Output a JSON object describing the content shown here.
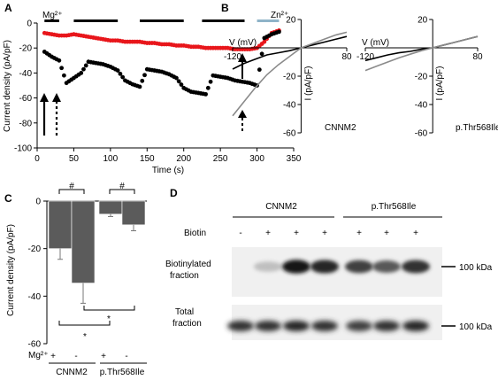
{
  "chart_data": [
    {
      "panel": "A",
      "type": "scatter",
      "xlabel": "Time (s)",
      "ylabel": "Current density (pA/pF)",
      "xlim": [
        0,
        350
      ],
      "ylim": [
        -100,
        0
      ],
      "xticks": [
        "0",
        "50",
        "100",
        "150",
        "200",
        "250",
        "300",
        "350"
      ],
      "yticks": [
        "0",
        "-20",
        "-40",
        "-60",
        "-80",
        "-100"
      ],
      "annotations": {
        "mg": "Mg²⁺",
        "zn": "Zn²⁺"
      },
      "mg_bars": [
        [
          10,
          30
        ],
        [
          50,
          110
        ],
        [
          140,
          200
        ],
        [
          225,
          283
        ]
      ],
      "zn_bar": [
        300,
        330
      ],
      "colors": {
        "red": "#e8161b",
        "black": "#000000",
        "zn_bar": "#8fb3c8"
      },
      "series": [
        {
          "color": "red",
          "x": [
            10,
            20,
            30,
            40,
            50,
            60,
            70,
            80,
            90,
            100,
            110,
            120,
            130,
            140,
            150,
            160,
            170,
            180,
            190,
            200,
            210,
            220,
            230,
            240,
            250,
            260,
            270,
            280,
            290,
            300,
            310,
            320,
            330
          ],
          "values": [
            -8,
            -9,
            -10,
            -10,
            -9,
            -10,
            -11,
            -12,
            -13,
            -14,
            -14,
            -15,
            -15,
            -15,
            -16,
            -16,
            -17,
            -17,
            -18,
            -18,
            -19,
            -19,
            -20,
            -20,
            -20,
            -20,
            -21,
            -21,
            -21,
            -20,
            -15,
            -8,
            -6
          ]
        },
        {
          "color": "black",
          "x": [
            10,
            20,
            30,
            40,
            50,
            60,
            70,
            80,
            90,
            100,
            110,
            120,
            130,
            140,
            150,
            160,
            170,
            180,
            190,
            200,
            210,
            220,
            230,
            240,
            250,
            260,
            270,
            280,
            290,
            300,
            310,
            320,
            330
          ],
          "values": [
            -23,
            -27,
            -30,
            -48,
            -44,
            -40,
            -31,
            -32,
            -33,
            -35,
            -38,
            -46,
            -49,
            -51,
            -37,
            -38,
            -39,
            -41,
            -44,
            -52,
            -55,
            -56,
            -57,
            -42,
            -43,
            -44,
            -46,
            -47,
            -48,
            -50,
            -12,
            -9,
            -7
          ]
        }
      ]
    },
    {
      "panel": "B",
      "type": "line",
      "subpanels": [
        {
          "name": "CNNM2",
          "xlabel": "V (mV)",
          "ylabel": "I (pA/pF)",
          "xlim": [
            -120,
            80
          ],
          "ylim": [
            -60,
            20
          ],
          "xticks": [
            "-120",
            "0",
            "80"
          ],
          "yticks": [
            "20",
            "0",
            "-20",
            "-40",
            "-60"
          ],
          "series": [
            {
              "color": "black",
              "x": [
                -120,
                -100,
                -80,
                -60,
                -40,
                -20,
                0,
                20,
                40,
                60,
                80
              ],
              "values": [
                -15,
                -11,
                -8,
                -5,
                -3.5,
                -2,
                0,
                2,
                4,
                6,
                8
              ]
            },
            {
              "color": "gray",
              "x": [
                -120,
                -100,
                -80,
                -60,
                -40,
                -20,
                0,
                20,
                40,
                60,
                80
              ],
              "values": [
                -48,
                -38,
                -28,
                -19,
                -12,
                -6,
                0,
                3,
                6,
                9,
                11
              ]
            }
          ]
        },
        {
          "name": "p.Thr568Ile",
          "xlabel": "V (mV)",
          "ylabel": "I (pA/pF)",
          "xlim": [
            -120,
            80
          ],
          "ylim": [
            -60,
            20
          ],
          "xticks": [
            "-120",
            "0",
            "80"
          ],
          "yticks": [
            "20",
            "0",
            "-20",
            "-40",
            "-60"
          ],
          "series": [
            {
              "color": "black",
              "x": [
                -120,
                -100,
                -80,
                -60,
                -40,
                -20,
                0,
                20,
                40,
                60,
                80
              ],
              "values": [
                -9,
                -7,
                -5,
                -3.5,
                -2.5,
                -1,
                0,
                2,
                4,
                6,
                8
              ]
            },
            {
              "color": "gray",
              "x": [
                -120,
                -100,
                -80,
                -60,
                -40,
                -20,
                0,
                20,
                40,
                60,
                80
              ],
              "values": [
                -16,
                -13,
                -10,
                -7,
                -4.5,
                -2,
                0,
                2,
                4,
                6,
                8
              ]
            }
          ]
        }
      ]
    },
    {
      "panel": "C",
      "type": "bar",
      "ylabel": "Current density (pA/pF)",
      "ylim": [
        -60,
        0
      ],
      "yticks": [
        "0",
        "-20",
        "-40",
        "-60"
      ],
      "row_label": "Mg²⁺",
      "mg_signs": [
        "+",
        "-",
        "+",
        "-"
      ],
      "groups": [
        "CNNM2",
        "p.Thr568Ile"
      ],
      "values": [
        -20,
        -34.5,
        -5.5,
        -10
      ],
      "errors": [
        4.5,
        8.5,
        1.0,
        2.5
      ],
      "bar_color": "#5b5b5b",
      "sig": [
        "#",
        "#",
        "*",
        "*"
      ]
    }
  ],
  "western": {
    "panel": "D",
    "groups": [
      "CNNM2",
      "p.Thr568Ile"
    ],
    "row_label": "Biotin",
    "biotin": [
      "-",
      "+",
      "+",
      "+",
      "+",
      "+",
      "+"
    ],
    "fraction_biotin": "Biotinylated\nfraction",
    "fraction_total": "Total\nfraction",
    "marker": "100 kDa",
    "biotin_intensity": [
      0.0,
      0.25,
      0.9,
      0.85,
      0.75,
      0.65,
      0.8
    ],
    "total_intensity": [
      0.8,
      0.8,
      0.85,
      0.8,
      0.75,
      0.8,
      0.85
    ]
  },
  "panels": {
    "a": "A",
    "b": "B",
    "c": "C",
    "d": "D"
  }
}
